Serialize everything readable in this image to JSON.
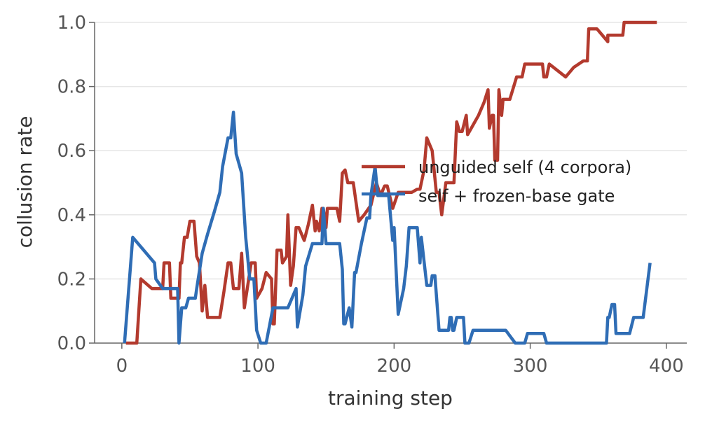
{
  "chart_data": {
    "type": "line",
    "xlabel": "training step",
    "ylabel": "collusion rate",
    "xlim": [
      -20,
      415
    ],
    "ylim": [
      0,
      1.0
    ],
    "xticks": [
      0,
      100,
      200,
      300,
      400
    ],
    "yticks": [
      "0.0",
      "0.2",
      "0.4",
      "0.6",
      "0.8",
      "1.0"
    ],
    "grid": "horizontal",
    "legend_position": "center-right",
    "series": [
      {
        "name": "unguided self (4 corpora)",
        "color": "#b33a2e",
        "points": [
          [
            3,
            0
          ],
          [
            11,
            0
          ],
          [
            14,
            0.2
          ],
          [
            22,
            0.17
          ],
          [
            30,
            0.17
          ],
          [
            31,
            0.25
          ],
          [
            35,
            0.25
          ],
          [
            36,
            0.14
          ],
          [
            40,
            0.14
          ],
          [
            42,
            0.14
          ],
          [
            43,
            0.25
          ],
          [
            44,
            0.25
          ],
          [
            46,
            0.33
          ],
          [
            48,
            0.33
          ],
          [
            50,
            0.38
          ],
          [
            53,
            0.38
          ],
          [
            55,
            0.27
          ],
          [
            57,
            0.25
          ],
          [
            59,
            0.1
          ],
          [
            61,
            0.18
          ],
          [
            63,
            0.08
          ],
          [
            66,
            0.08
          ],
          [
            72,
            0.08
          ],
          [
            75,
            0.16
          ],
          [
            78,
            0.25
          ],
          [
            80,
            0.25
          ],
          [
            82,
            0.17
          ],
          [
            86,
            0.17
          ],
          [
            88,
            0.28
          ],
          [
            90,
            0.11
          ],
          [
            95,
            0.25
          ],
          [
            98,
            0.25
          ],
          [
            99,
            0.14
          ],
          [
            103,
            0.17
          ],
          [
            106,
            0.22
          ],
          [
            110,
            0.2
          ],
          [
            111,
            0.06
          ],
          [
            112,
            0.06
          ],
          [
            114,
            0.29
          ],
          [
            117,
            0.29
          ],
          [
            118,
            0.25
          ],
          [
            121,
            0.27
          ],
          [
            122,
            0.4
          ],
          [
            124,
            0.18
          ],
          [
            126,
            0.24
          ],
          [
            128,
            0.36
          ],
          [
            130,
            0.36
          ],
          [
            134,
            0.32
          ],
          [
            137,
            0.37
          ],
          [
            140,
            0.43
          ],
          [
            142,
            0.35
          ],
          [
            143,
            0.38
          ],
          [
            145,
            0.35
          ],
          [
            147,
            0.42
          ],
          [
            148,
            0.42
          ],
          [
            150,
            0.36
          ],
          [
            151,
            0.42
          ],
          [
            158,
            0.42
          ],
          [
            160,
            0.38
          ],
          [
            162,
            0.53
          ],
          [
            164,
            0.54
          ],
          [
            166,
            0.5
          ],
          [
            170,
            0.5
          ],
          [
            174,
            0.38
          ],
          [
            178,
            0.4
          ],
          [
            183,
            0.43
          ],
          [
            187,
            0.5
          ],
          [
            190,
            0.46
          ],
          [
            193,
            0.49
          ],
          [
            195,
            0.49
          ],
          [
            199,
            0.42
          ],
          [
            203,
            0.47
          ],
          [
            207,
            0.47
          ],
          [
            213,
            0.47
          ],
          [
            217,
            0.48
          ],
          [
            219,
            0.48
          ],
          [
            222,
            0.54
          ],
          [
            224,
            0.64
          ],
          [
            228,
            0.6
          ],
          [
            231,
            0.47
          ],
          [
            233,
            0.47
          ],
          [
            235,
            0.4
          ],
          [
            238,
            0.5
          ],
          [
            241,
            0.5
          ],
          [
            244,
            0.5
          ],
          [
            246,
            0.69
          ],
          [
            248,
            0.66
          ],
          [
            250,
            0.66
          ],
          [
            253,
            0.71
          ],
          [
            254,
            0.65
          ],
          [
            258,
            0.68
          ],
          [
            262,
            0.71
          ],
          [
            266,
            0.75
          ],
          [
            269,
            0.79
          ],
          [
            270,
            0.67
          ],
          [
            272,
            0.71
          ],
          [
            273,
            0.71
          ],
          [
            274,
            0.57
          ],
          [
            276,
            0.57
          ],
          [
            277,
            0.79
          ],
          [
            279,
            0.71
          ],
          [
            280,
            0.76
          ],
          [
            283,
            0.76
          ],
          [
            285,
            0.76
          ],
          [
            290,
            0.83
          ],
          [
            294,
            0.83
          ],
          [
            296,
            0.87
          ],
          [
            301,
            0.87
          ],
          [
            307,
            0.87
          ],
          [
            309,
            0.87
          ],
          [
            310,
            0.83
          ],
          [
            312,
            0.83
          ],
          [
            314,
            0.87
          ],
          [
            320,
            0.85
          ],
          [
            326,
            0.83
          ],
          [
            332,
            0.86
          ],
          [
            339,
            0.88
          ],
          [
            342,
            0.88
          ],
          [
            343,
            0.98
          ],
          [
            349,
            0.98
          ],
          [
            357,
            0.94
          ],
          [
            357,
            0.96
          ],
          [
            360,
            0.96
          ],
          [
            368,
            0.96
          ],
          [
            369,
            1.0
          ],
          [
            393,
            1.0
          ]
        ]
      },
      {
        "name": "self + frozen-base gate",
        "color": "#2f6db5",
        "points": [
          [
            2,
            0
          ],
          [
            8,
            0.33
          ],
          [
            24,
            0.25
          ],
          [
            25,
            0.2
          ],
          [
            30,
            0.17
          ],
          [
            33,
            0.17
          ],
          [
            39,
            0.17
          ],
          [
            41,
            0.17
          ],
          [
            42,
            0
          ],
          [
            44,
            0.11
          ],
          [
            47,
            0.11
          ],
          [
            49,
            0.14
          ],
          [
            54,
            0.14
          ],
          [
            55,
            0.17
          ],
          [
            59,
            0.28
          ],
          [
            63,
            0.34
          ],
          [
            68,
            0.41
          ],
          [
            72,
            0.47
          ],
          [
            74,
            0.55
          ],
          [
            78,
            0.64
          ],
          [
            80,
            0.64
          ],
          [
            82,
            0.72
          ],
          [
            84,
            0.59
          ],
          [
            88,
            0.53
          ],
          [
            91,
            0.33
          ],
          [
            94,
            0.2
          ],
          [
            97,
            0.2
          ],
          [
            99,
            0.04
          ],
          [
            102,
            0
          ],
          [
            106,
            0
          ],
          [
            111,
            0.11
          ],
          [
            116,
            0.11
          ],
          [
            122,
            0.11
          ],
          [
            128,
            0.17
          ],
          [
            129,
            0.05
          ],
          [
            133,
            0.15
          ],
          [
            135,
            0.24
          ],
          [
            140,
            0.31
          ],
          [
            143,
            0.31
          ],
          [
            147,
            0.31
          ],
          [
            148,
            0.42
          ],
          [
            150,
            0.31
          ],
          [
            155,
            0.31
          ],
          [
            160,
            0.31
          ],
          [
            162,
            0.23
          ],
          [
            163,
            0.06
          ],
          [
            164,
            0.06
          ],
          [
            167,
            0.11
          ],
          [
            169,
            0.05
          ],
          [
            171,
            0.22
          ],
          [
            172,
            0.22
          ],
          [
            176,
            0.31
          ],
          [
            180,
            0.39
          ],
          [
            182,
            0.39
          ],
          [
            183,
            0.46
          ],
          [
            186,
            0.55
          ],
          [
            188,
            0.46
          ],
          [
            193,
            0.46
          ],
          [
            196,
            0.46
          ],
          [
            199,
            0.32
          ],
          [
            200,
            0.36
          ],
          [
            203,
            0.09
          ],
          [
            207,
            0.17
          ],
          [
            209,
            0.24
          ],
          [
            211,
            0.36
          ],
          [
            217,
            0.36
          ],
          [
            219,
            0.25
          ],
          [
            220,
            0.33
          ],
          [
            224,
            0.18
          ],
          [
            227,
            0.18
          ],
          [
            228,
            0.21
          ],
          [
            230,
            0.21
          ],
          [
            233,
            0.04
          ],
          [
            235,
            0.04
          ],
          [
            240,
            0.04
          ],
          [
            241,
            0.08
          ],
          [
            242,
            0.08
          ],
          [
            243,
            0.04
          ],
          [
            244,
            0.04
          ],
          [
            246,
            0.08
          ],
          [
            251,
            0.08
          ],
          [
            252,
            0
          ],
          [
            255,
            0
          ],
          [
            258,
            0.04
          ],
          [
            266,
            0.04
          ],
          [
            278,
            0.04
          ],
          [
            282,
            0.04
          ],
          [
            289,
            0
          ],
          [
            296,
            0
          ],
          [
            298,
            0.03
          ],
          [
            310,
            0.03
          ],
          [
            312,
            0
          ],
          [
            337,
            0
          ],
          [
            356,
            0
          ],
          [
            357,
            0.08
          ],
          [
            358,
            0.08
          ],
          [
            360,
            0.12
          ],
          [
            362,
            0.12
          ],
          [
            363,
            0.03
          ],
          [
            365,
            0.03
          ],
          [
            370,
            0.03
          ],
          [
            373,
            0.03
          ],
          [
            376,
            0.08
          ],
          [
            380,
            0.08
          ],
          [
            383,
            0.08
          ],
          [
            388,
            0.25
          ]
        ]
      }
    ]
  }
}
